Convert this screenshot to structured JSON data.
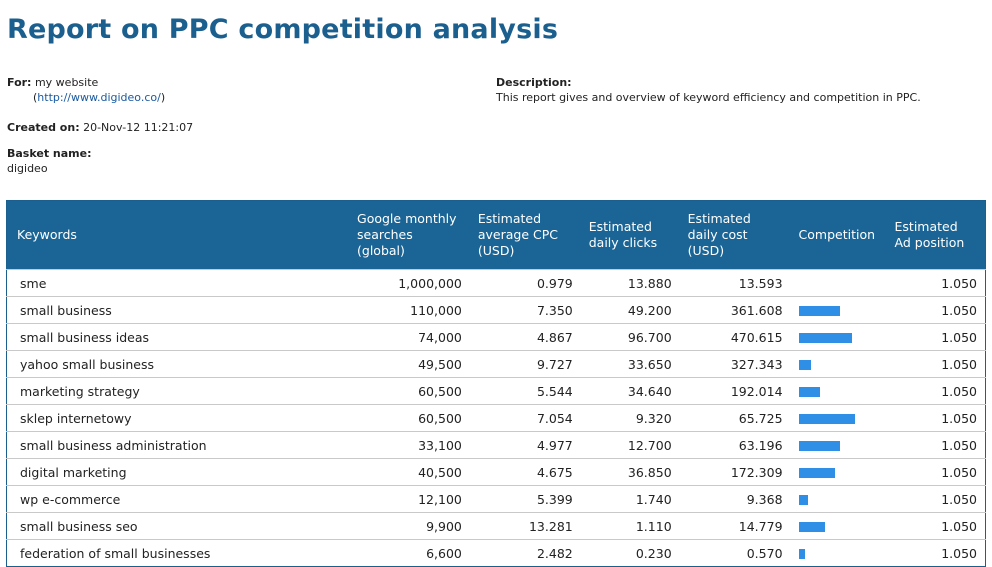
{
  "title": "Report on PPC competition analysis",
  "for": {
    "label": "For:",
    "name": "my website",
    "url_open": "(",
    "url": "http://www.digideo.co/",
    "url_close": ")"
  },
  "description": {
    "label": "Description:",
    "text": "This report gives and overview of keyword efficiency and competition in PPC."
  },
  "created": {
    "label": "Created on:",
    "value": "20-Nov-12 11:21:07"
  },
  "basket": {
    "label": "Basket name:",
    "value": "digideo"
  },
  "table": {
    "headers": [
      "Keywords",
      "Google monthly searches (global)",
      "Estimated average CPC (USD)",
      "Estimated daily clicks",
      "Estimated daily cost (USD)",
      "Competition",
      "Estimated Ad position"
    ],
    "rows": [
      {
        "keyword": "sme",
        "searches": "1,000,000",
        "cpc": "0.979",
        "clicks": "13.880",
        "cost": "13.593",
        "competition": 0.0,
        "position": "1.050"
      },
      {
        "keyword": "small business",
        "searches": "110,000",
        "cpc": "7.350",
        "clicks": "49.200",
        "cost": "361.608",
        "competition": 0.73,
        "position": "1.050"
      },
      {
        "keyword": "small business ideas",
        "searches": "74,000",
        "cpc": "4.867",
        "clicks": "96.700",
        "cost": "470.615",
        "competition": 0.95,
        "position": "1.050"
      },
      {
        "keyword": "yahoo small business",
        "searches": "49,500",
        "cpc": "9.727",
        "clicks": "33.650",
        "cost": "327.343",
        "competition": 0.22,
        "position": "1.050"
      },
      {
        "keyword": "marketing strategy",
        "searches": "60,500",
        "cpc": "5.544",
        "clicks": "34.640",
        "cost": "192.014",
        "competition": 0.38,
        "position": "1.050"
      },
      {
        "keyword": "sklep internetowy",
        "searches": "60,500",
        "cpc": "7.054",
        "clicks": "9.320",
        "cost": "65.725",
        "competition": 1.0,
        "position": "1.050"
      },
      {
        "keyword": "small business administration",
        "searches": "33,100",
        "cpc": "4.977",
        "clicks": "12.700",
        "cost": "63.196",
        "competition": 0.73,
        "position": "1.050"
      },
      {
        "keyword": "digital marketing",
        "searches": "40,500",
        "cpc": "4.675",
        "clicks": "36.850",
        "cost": "172.309",
        "competition": 0.64,
        "position": "1.050"
      },
      {
        "keyword": "wp e-commerce",
        "searches": "12,100",
        "cpc": "5.399",
        "clicks": "1.740",
        "cost": "9.368",
        "competition": 0.16,
        "position": "1.050"
      },
      {
        "keyword": "small business seo",
        "searches": "9,900",
        "cpc": "13.281",
        "clicks": "1.110",
        "cost": "14.779",
        "competition": 0.47,
        "position": "1.050"
      },
      {
        "keyword": "federation of small businesses",
        "searches": "6,600",
        "cpc": "2.482",
        "clicks": "0.230",
        "cost": "0.570",
        "competition": 0.1,
        "position": "1.050"
      }
    ]
  }
}
